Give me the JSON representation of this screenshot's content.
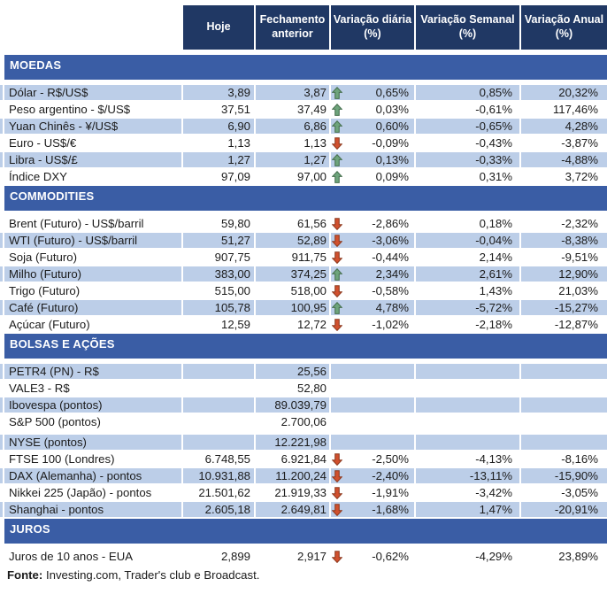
{
  "header": {
    "columns": [
      "Hoje",
      "Fechamento anterior",
      "Variação diária (%)",
      "Variação Semanal (%)",
      "Variação Anual (%)"
    ]
  },
  "sections": [
    {
      "title": "MOEDAS",
      "rows": [
        {
          "label": "Dólar - R$/US$",
          "hoje": "3,89",
          "fechamento": "3,87",
          "arrow": "up",
          "daily": "0,65%",
          "weekly": "0,85%",
          "annual": "20,32%"
        },
        {
          "label": "Peso argentino - $/US$",
          "hoje": "37,51",
          "fechamento": "37,49",
          "arrow": "up",
          "daily": "0,03%",
          "weekly": "-0,61%",
          "annual": "117,46%"
        },
        {
          "label": "Yuan Chinês - ¥/US$",
          "hoje": "6,90",
          "fechamento": "6,86",
          "arrow": "up",
          "daily": "0,60%",
          "weekly": "-0,65%",
          "annual": "4,28%"
        },
        {
          "label": "Euro - US$/€",
          "hoje": "1,13",
          "fechamento": "1,13",
          "arrow": "down",
          "daily": "-0,09%",
          "weekly": "-0,43%",
          "annual": "-3,87%"
        },
        {
          "label": "Libra - US$/£",
          "hoje": "1,27",
          "fechamento": "1,27",
          "arrow": "up",
          "daily": "0,13%",
          "weekly": "-0,33%",
          "annual": "-4,88%"
        },
        {
          "label": "Índice DXY",
          "hoje": "97,09",
          "fechamento": "97,00",
          "arrow": "up",
          "daily": "0,09%",
          "weekly": "0,31%",
          "annual": "3,72%"
        }
      ]
    },
    {
      "title": "COMMODITIES",
      "rows": [
        {
          "label": "Brent (Futuro) - US$/barril",
          "hoje": "59,80",
          "fechamento": "61,56",
          "arrow": "down",
          "daily": "-2,86%",
          "weekly": "0,18%",
          "annual": "-2,32%"
        },
        {
          "label": "WTI (Futuro) - US$/barril",
          "hoje": "51,27",
          "fechamento": "52,89",
          "arrow": "down",
          "daily": "-3,06%",
          "weekly": "-0,04%",
          "annual": "-8,38%"
        },
        {
          "label": "Soja (Futuro)",
          "hoje": "907,75",
          "fechamento": "911,75",
          "arrow": "down",
          "daily": "-0,44%",
          "weekly": "2,14%",
          "annual": "-9,51%"
        },
        {
          "label": "Milho (Futuro)",
          "hoje": "383,00",
          "fechamento": "374,25",
          "arrow": "up",
          "daily": "2,34%",
          "weekly": "2,61%",
          "annual": "12,90%"
        },
        {
          "label": "Trigo (Futuro)",
          "hoje": "515,00",
          "fechamento": "518,00",
          "arrow": "down",
          "daily": "-0,58%",
          "weekly": "1,43%",
          "annual": "21,03%"
        },
        {
          "label": "Café (Futuro)",
          "hoje": "105,78",
          "fechamento": "100,95",
          "arrow": "up",
          "daily": "4,78%",
          "weekly": "-5,72%",
          "annual": "-15,27%"
        },
        {
          "label": "Açúcar (Futuro)",
          "hoje": "12,59",
          "fechamento": "12,72",
          "arrow": "down",
          "daily": "-1,02%",
          "weekly": "-2,18%",
          "annual": "-12,87%"
        }
      ]
    },
    {
      "title": "BOLSAS E AÇÕES",
      "rows": [
        {
          "label": "PETR4 (PN) - R$",
          "hoje": "",
          "fechamento": "25,56",
          "arrow": "",
          "daily": "",
          "weekly": "",
          "annual": ""
        },
        {
          "label": "VALE3 - R$",
          "hoje": "",
          "fechamento": "52,80",
          "arrow": "",
          "daily": "",
          "weekly": "",
          "annual": ""
        },
        {
          "label": "Ibovespa (pontos)",
          "hoje": "",
          "fechamento": "89.039,79",
          "arrow": "",
          "daily": "",
          "weekly": "",
          "annual": ""
        },
        {
          "label": "S&P 500 (pontos)",
          "hoje": "",
          "fechamento": "2.700,06",
          "arrow": "",
          "daily": "",
          "weekly": "",
          "annual": ""
        },
        {
          "label": "NYSE (pontos)",
          "hoje": "",
          "fechamento": "12.221,98",
          "arrow": "",
          "daily": "",
          "weekly": "",
          "annual": "",
          "spacer_before": true
        },
        {
          "label": "FTSE 100 (Londres)",
          "hoje": "6.748,55",
          "fechamento": "6.921,84",
          "arrow": "down",
          "daily": "-2,50%",
          "weekly": "-4,13%",
          "annual": "-8,16%"
        },
        {
          "label": "DAX (Alemanha) - pontos",
          "hoje": "10.931,88",
          "fechamento": "11.200,24",
          "arrow": "down",
          "daily": "-2,40%",
          "weekly": "-13,11%",
          "annual": "-15,90%"
        },
        {
          "label": "Nikkei 225 (Japão) - pontos",
          "hoje": "21.501,62",
          "fechamento": "21.919,33",
          "arrow": "down",
          "daily": "-1,91%",
          "weekly": "-3,42%",
          "annual": "-3,05%"
        },
        {
          "label": "Shanghai - pontos",
          "hoje": "2.605,18",
          "fechamento": "2.649,81",
          "arrow": "down",
          "daily": "-1,68%",
          "weekly": "1,47%",
          "annual": "-20,91%"
        }
      ]
    },
    {
      "title": "JUROS",
      "rows": [
        {
          "label": "Juros de 10 anos - EUA",
          "hoje": "2,899",
          "fechamento": "2,917",
          "arrow": "down",
          "daily": "-0,62%",
          "weekly": "-4,29%",
          "annual": "23,89%"
        }
      ]
    }
  ],
  "footer": {
    "label": "Fonte:",
    "text": " Investing.com, Trader's club e Broadcast."
  },
  "colors": {
    "header_bg": "#203864",
    "section_bg": "#3A5DA5",
    "band": "#BCCEE8",
    "green_fill": "#6EA47C",
    "green_stroke": "#47704F",
    "red_fill": "#D1502E",
    "red_stroke": "#8E3A1F"
  }
}
